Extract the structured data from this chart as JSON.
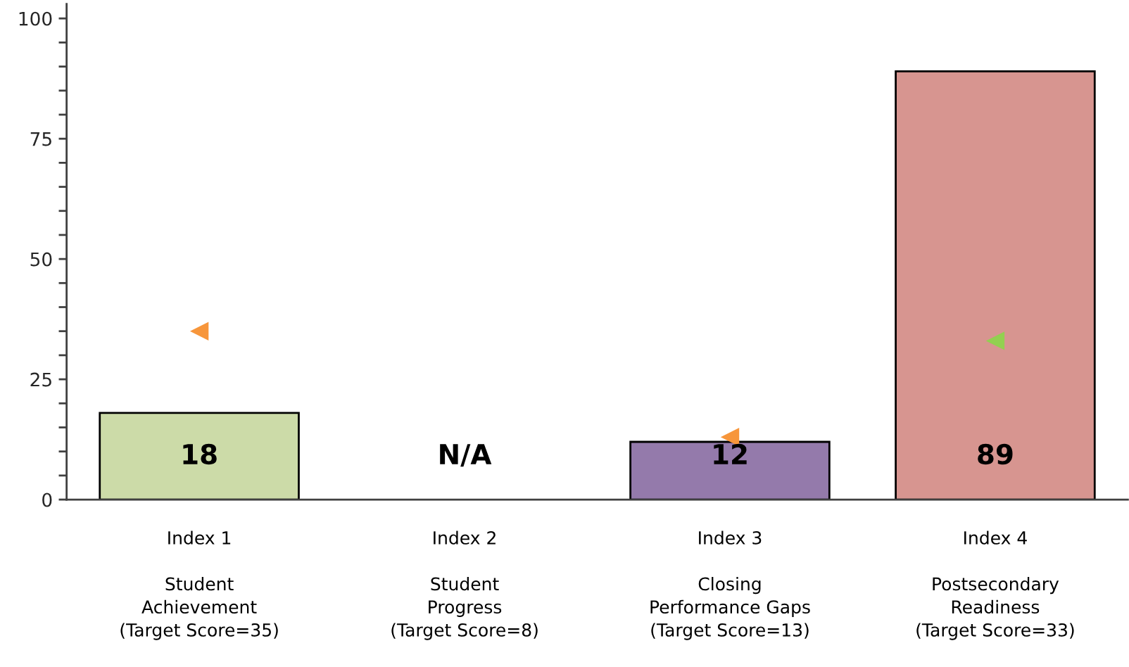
{
  "chart_data": {
    "type": "bar",
    "categories": [
      "Index 1\n\nStudent\nAchievement\n(Target Score=35)",
      "Index 2\n\nStudent\nProgress\n(Target Score=8)",
      "Index 3\n\nClosing\nPerformance Gaps\n(Target Score=13)",
      "Index 4\n\nPostsecondary\nReadiness\n(Target Score=33)"
    ],
    "series": [
      {
        "colors": [
          "#ccdba8",
          null,
          "#947aab",
          "#d79590"
        ],
        "values": [
          18,
          null,
          12,
          89
        ],
        "value_labels": [
          "18",
          "N/A",
          "12",
          "89"
        ]
      },
      {
        "type": "scatter",
        "colors": [
          "#f7963b",
          null,
          "#f7963b",
          "#92d050"
        ],
        "values": [
          35,
          null,
          13,
          33
        ]
      }
    ],
    "marker": "triangle",
    "ylim": [
      0,
      103
    ],
    "yticks": [
      0,
      {
        "value": 5,
        "label": null
      },
      {
        "value": 10,
        "label": null
      },
      {
        "value": 15,
        "label": null
      },
      {
        "value": 20,
        "label": null
      },
      25,
      {
        "value": 30,
        "label": null
      },
      {
        "value": 35,
        "label": null
      },
      {
        "value": 40,
        "label": null
      },
      {
        "value": 45,
        "label": null
      },
      50,
      {
        "value": 55,
        "label": null
      },
      {
        "value": 60,
        "label": null
      },
      {
        "value": 65,
        "label": null
      },
      {
        "value": 70,
        "label": null
      },
      75,
      {
        "value": 80,
        "label": null
      },
      {
        "value": 85,
        "label": null
      },
      {
        "value": 90,
        "label": null
      },
      {
        "value": 95,
        "label": null
      },
      100
    ]
  }
}
